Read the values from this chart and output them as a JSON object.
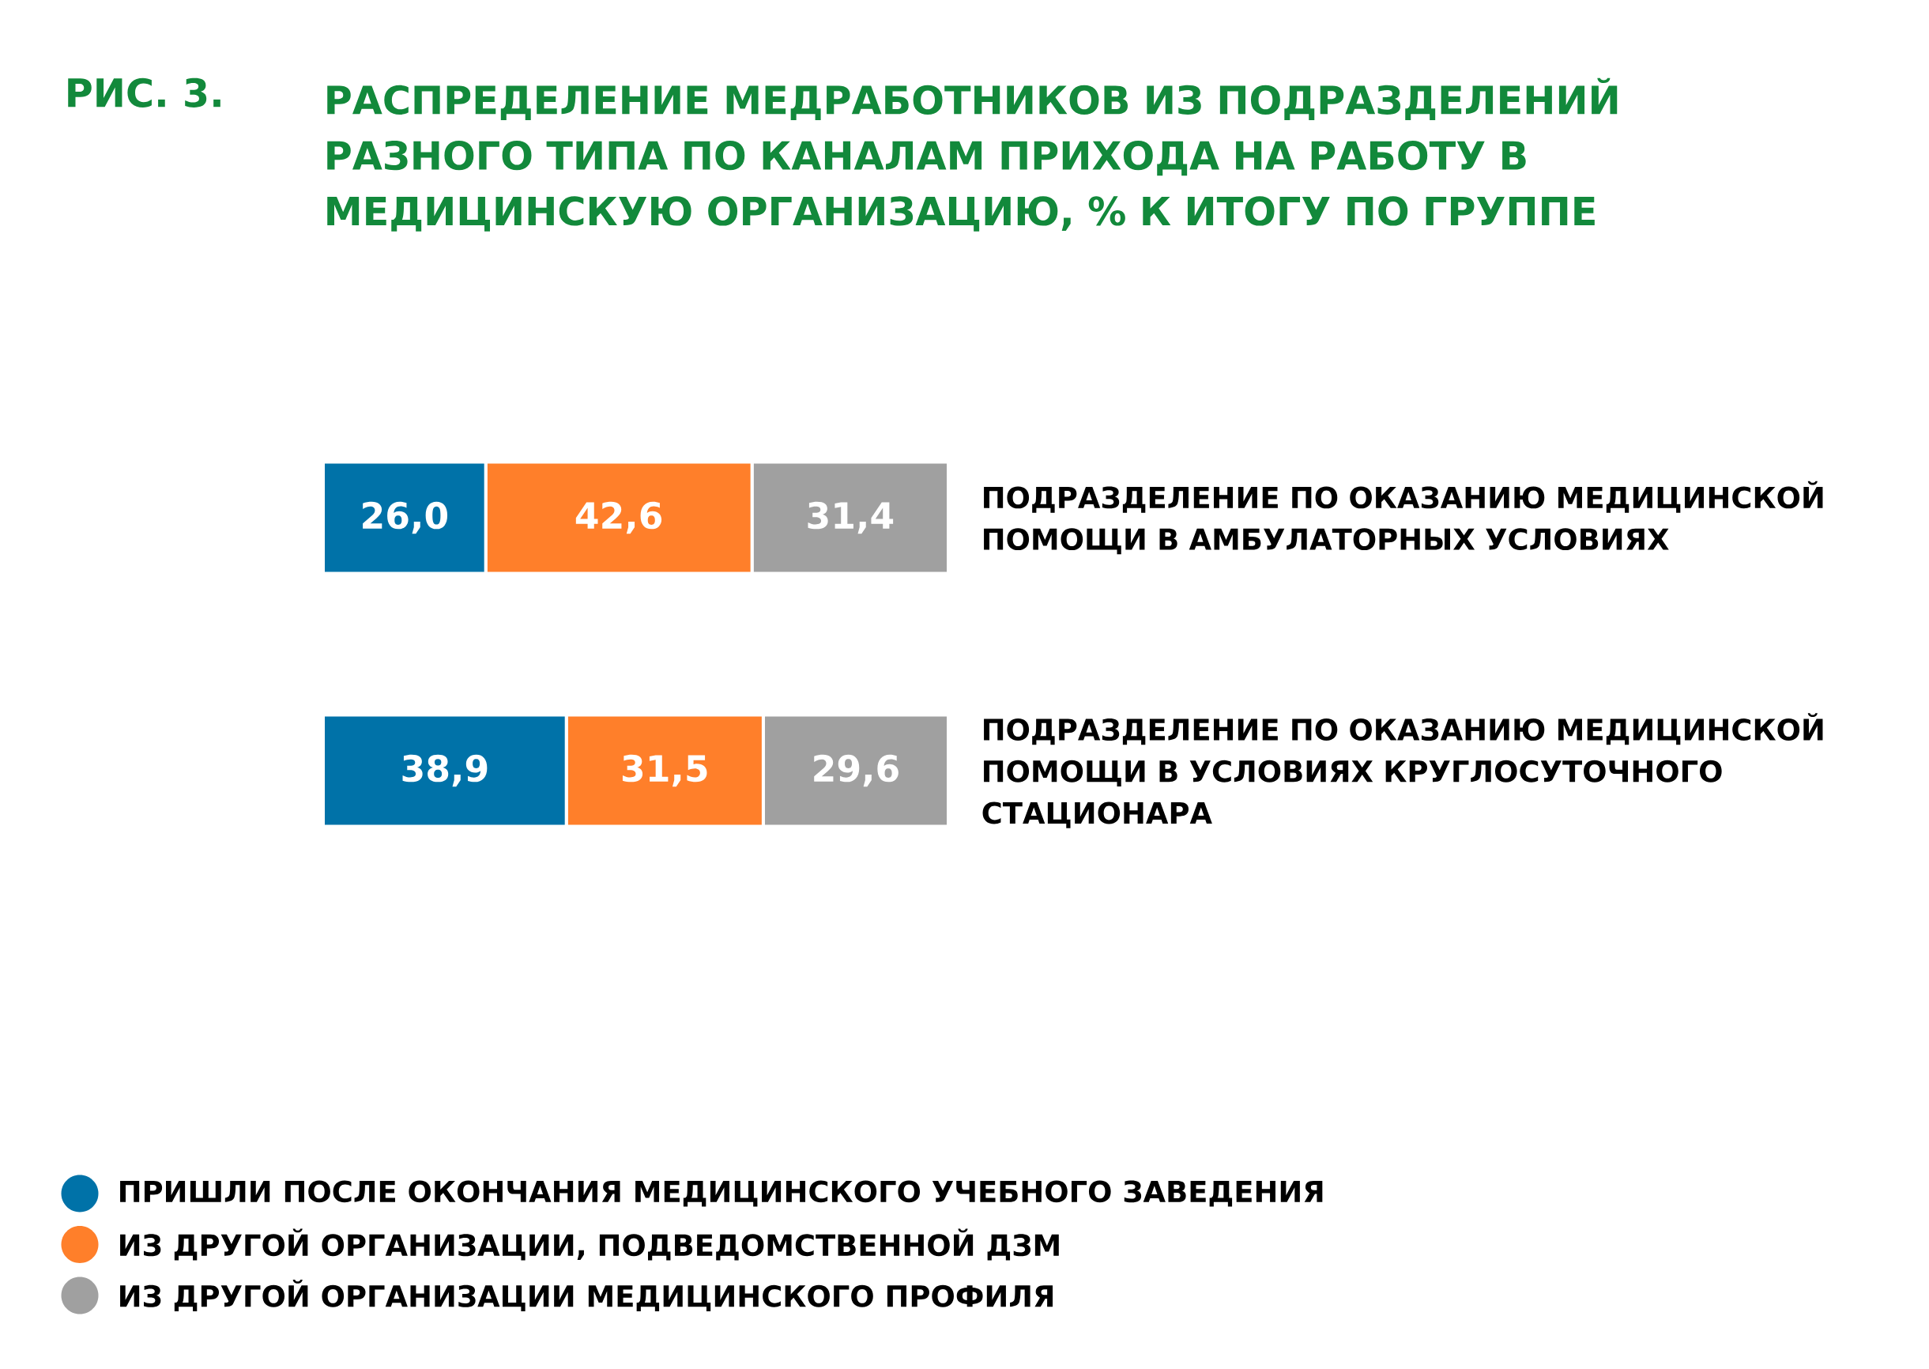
{
  "chart_data": {
    "type": "bar",
    "orientation": "horizontal",
    "stacked": true,
    "title": "РАСПРЕДЕЛЕНИЕ МЕДРАБОТНИКОВ ИЗ ПОДРАЗДЕЛЕНИЙ РАЗНОГО ТИПА ПО КАНАЛАМ ПРИХОДА НА РАБОТУ В МЕДИЦИНСКУЮ ОРГАНИЗАЦИЮ, % К ИТОГУ ПО ГРУППЕ",
    "annotations": [
      "РИС. 3."
    ],
    "categories": [
      "ПОДРАЗДЕЛЕНИЕ ПО ОКАЗАНИЮ МЕДИЦИНСКОЙ ПОМОЩИ В АМБУЛАТОРНЫХ УСЛОВИЯХ",
      "ПОДРАЗДЕЛЕНИЕ ПО ОКАЗАНИЮ МЕДИЦИНСКОЙ ПОМОЩИ В УСЛОВИЯХ КРУГЛОСУТОЧНОГО СТАЦИОНАРА"
    ],
    "series": [
      {
        "name": "ПРИШЛИ ПОСЛЕ ОКОНЧАНИЯ МЕДИЦИНСКОГО УЧЕБНОГО ЗАВЕДЕНИЯ",
        "color": "#0072a8",
        "values": [
          26.0,
          38.9
        ],
        "value_labels": [
          "26,0",
          "38,9"
        ]
      },
      {
        "name": "ИЗ ДРУГОЙ ОРГАНИЗАЦИИ, ПОДВЕДОМСТВЕННОЙ ДЗМ",
        "color": "#ff7f2a",
        "values": [
          42.6,
          31.5
        ],
        "value_labels": [
          "42,6",
          "31,5"
        ]
      },
      {
        "name": "ИЗ ДРУГОЙ ОРГАНИЗАЦИИ МЕДИЦИНСКОГО ПРОФИЛЯ",
        "color": "#a0a0a0",
        "values": [
          31.4,
          29.6
        ],
        "value_labels": [
          "31,4",
          "29,6"
        ]
      }
    ],
    "legend": "bottom"
  }
}
